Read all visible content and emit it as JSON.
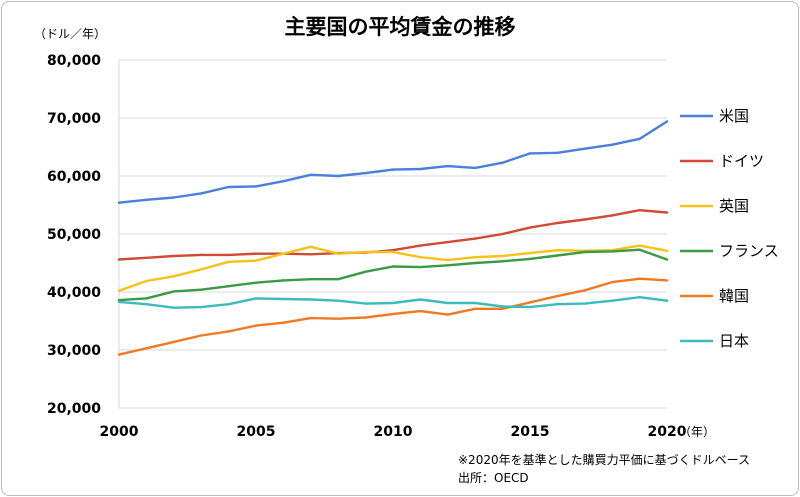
{
  "chart_data": {
    "type": "line",
    "title": "主要国の平均賃金の推移",
    "y_unit": "（ドル／年）",
    "x_unit": "（年）",
    "footnote": "※2020年を基準とした購買力平価に基づくドルベース",
    "source": "出所：OECD",
    "ylim": [
      20000,
      80000
    ],
    "xlim": [
      2000,
      2020
    ],
    "grid": true,
    "legend_position": "right",
    "y_ticks": [
      {
        "value": 80000,
        "label": "80,000"
      },
      {
        "value": 70000,
        "label": "70,000"
      },
      {
        "value": 60000,
        "label": "60,000"
      },
      {
        "value": 50000,
        "label": "50,000"
      },
      {
        "value": 40000,
        "label": "40,000"
      },
      {
        "value": 30000,
        "label": "30,000"
      },
      {
        "value": 20000,
        "label": "20,000"
      }
    ],
    "x_ticks": [
      {
        "value": 2000,
        "label": "2000"
      },
      {
        "value": 2005,
        "label": "2005"
      },
      {
        "value": 2010,
        "label": "2010"
      },
      {
        "value": 2015,
        "label": "2015"
      },
      {
        "value": 2020,
        "label": "2020"
      }
    ],
    "x": [
      2000,
      2001,
      2002,
      2003,
      2004,
      2005,
      2006,
      2007,
      2008,
      2009,
      2010,
      2011,
      2012,
      2013,
      2014,
      2015,
      2016,
      2017,
      2018,
      2019,
      2020
    ],
    "series": [
      {
        "name": "米国",
        "color": "#4a7fdb",
        "values": [
          55400,
          55900,
          56300,
          57000,
          58100,
          58200,
          59100,
          60200,
          60000,
          60500,
          61100,
          61200,
          61700,
          61400,
          62300,
          63900,
          64000,
          64700,
          65400,
          66400,
          69400
        ]
      },
      {
        "name": "ドイツ",
        "color": "#d04a37",
        "values": [
          45600,
          45900,
          46200,
          46400,
          46400,
          46600,
          46600,
          46500,
          46700,
          46800,
          47200,
          48000,
          48600,
          49200,
          50000,
          51100,
          51900,
          52500,
          53200,
          54100,
          53700
        ]
      },
      {
        "name": "英国",
        "color": "#f5c21a",
        "values": [
          40200,
          41900,
          42700,
          43900,
          45200,
          45400,
          46600,
          47800,
          46600,
          46900,
          46900,
          46000,
          45500,
          46000,
          46200,
          46700,
          47200,
          47100,
          47200,
          48000,
          47100
        ]
      },
      {
        "name": "フランス",
        "color": "#3a9a45",
        "values": [
          38600,
          38900,
          40100,
          40400,
          41000,
          41600,
          42000,
          42200,
          42200,
          43500,
          44400,
          44300,
          44600,
          45000,
          45300,
          45700,
          46300,
          46900,
          47000,
          47300,
          45600
        ]
      },
      {
        "name": "韓国",
        "color": "#f07a24",
        "values": [
          29200,
          30300,
          31400,
          32500,
          33200,
          34200,
          34700,
          35500,
          35400,
          35600,
          36200,
          36700,
          36100,
          37100,
          37100,
          38200,
          39300,
          40300,
          41700,
          42300,
          42000
        ]
      },
      {
        "name": "日本",
        "color": "#3dbbbb",
        "values": [
          38300,
          37900,
          37300,
          37400,
          37900,
          38900,
          38800,
          38700,
          38500,
          38000,
          38100,
          38700,
          38100,
          38100,
          37500,
          37400,
          37900,
          38000,
          38500,
          39100,
          38500
        ]
      }
    ]
  }
}
